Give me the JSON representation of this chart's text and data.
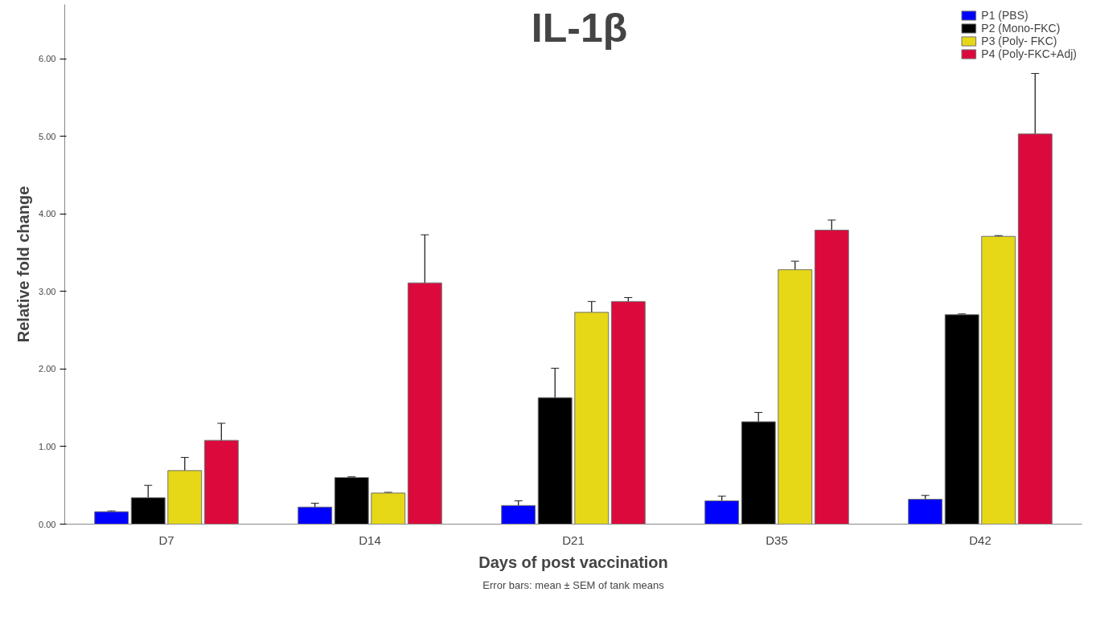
{
  "chart_data": {
    "type": "bar",
    "title": "IL-1β",
    "xlabel": "Days of post vaccination",
    "ylabel": "Relative fold change",
    "categories": [
      "D7",
      "D14",
      "D21",
      "D35",
      "D42"
    ],
    "series": [
      {
        "name": "P1 (PBS)",
        "color": "#0000ff",
        "values": [
          0.16,
          0.22,
          0.24,
          0.3,
          0.32
        ],
        "errors": [
          0.01,
          0.05,
          0.06,
          0.06,
          0.05
        ]
      },
      {
        "name": "P2 (Mono-FKC)",
        "color": "#000000",
        "values": [
          0.34,
          0.6,
          1.63,
          1.32,
          2.7
        ],
        "errors": [
          0.16,
          0.01,
          0.38,
          0.12,
          0.01
        ]
      },
      {
        "name": "P3 (Poly- FKC)",
        "color": "#e6d817",
        "values": [
          0.69,
          0.4,
          2.73,
          3.28,
          3.71
        ],
        "errors": [
          0.17,
          0.01,
          0.14,
          0.11,
          0.01
        ]
      },
      {
        "name": "P4 (Poly-FKC+Adj)",
        "color": "#dc0a3c",
        "values": [
          1.08,
          3.11,
          2.87,
          3.79,
          5.03
        ],
        "errors": [
          0.22,
          0.62,
          0.05,
          0.13,
          0.78
        ]
      }
    ],
    "ylim": [
      0,
      6.7
    ],
    "yticks": [
      {
        "value": 0,
        "label": "0.00"
      },
      {
        "value": 1,
        "label": "1.00"
      },
      {
        "value": 2,
        "label": "2.00"
      },
      {
        "value": 3,
        "label": "3.00"
      },
      {
        "value": 4,
        "label": "4.00"
      },
      {
        "value": 5,
        "label": "5.00"
      },
      {
        "value": 6,
        "label": "6.00"
      }
    ],
    "grid": false,
    "legend": "top right",
    "annotations": [
      "Error bars: mean ± SEM of tank means"
    ]
  }
}
